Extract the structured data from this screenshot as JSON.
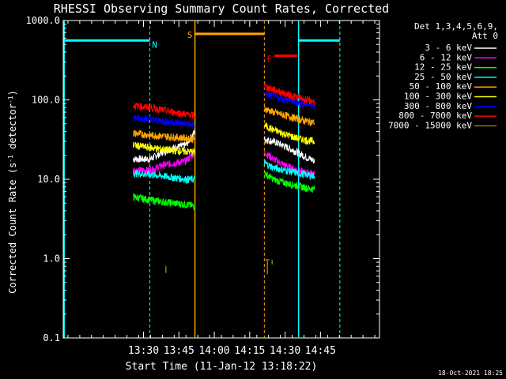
{
  "chart_data": {
    "type": "line",
    "title": "RHESSI Observing Summary Count Rates, Corrected",
    "xlabel": "Start Time (11-Jan-12 13:18:22)",
    "ylabel": "Corrected Count Rate (s⁻¹ detector⁻¹)",
    "ylabel_parts": [
      "Corrected Count Rate (s",
      "-1",
      " detector",
      "-1",
      ")"
    ],
    "y_scale": "log",
    "ylim": [
      0.1,
      1000
    ],
    "xlim_minutes": [
      -22,
      112
    ],
    "x_ticks": [
      {
        "minute": 12,
        "label": "13:30"
      },
      {
        "minute": 27,
        "label": "13:45"
      },
      {
        "minute": 42,
        "label": "14:00"
      },
      {
        "minute": 57,
        "label": "14:15"
      },
      {
        "minute": 72,
        "label": "14:30"
      },
      {
        "minute": 87,
        "label": "14:45"
      }
    ],
    "y_ticks": [
      {
        "value": 0.1,
        "label": "0.1"
      },
      {
        "value": 1,
        "label": "1.0"
      },
      {
        "value": 10,
        "label": "10.0"
      },
      {
        "value": 100,
        "label": "100.0"
      },
      {
        "value": 1000,
        "label": "1000.0"
      }
    ],
    "legend_header": [
      "Det 1,3,4,5,6,9,",
      "Att 0"
    ],
    "legend_position": "right",
    "segments": [
      [
        7.6,
        33.8
      ],
      [
        63.2,
        84.5
      ]
    ],
    "series": [
      {
        "name": "3 - 6 keV",
        "color": "#ffffff",
        "values": [
          [
            7.6,
            18
          ],
          [
            15,
            18
          ],
          [
            20,
            22
          ],
          [
            25,
            25
          ],
          [
            30,
            27
          ],
          [
            33.8,
            40
          ],
          [
            63.2,
            32
          ],
          [
            67,
            30
          ],
          [
            72,
            26
          ],
          [
            77,
            22
          ],
          [
            81,
            19
          ],
          [
            84.5,
            17
          ]
        ]
      },
      {
        "name": "6 - 12 keV",
        "color": "#ff00ff",
        "values": [
          [
            7.6,
            13
          ],
          [
            15,
            13
          ],
          [
            20,
            15
          ],
          [
            25,
            16
          ],
          [
            30,
            17
          ],
          [
            33.8,
            22
          ],
          [
            63.2,
            22
          ],
          [
            67,
            18
          ],
          [
            72,
            15
          ],
          [
            77,
            13
          ],
          [
            81,
            12
          ],
          [
            84.5,
            12
          ]
        ]
      },
      {
        "name": "12 - 25 keV",
        "color": "#00ff00",
        "values": [
          [
            7.6,
            6
          ],
          [
            15,
            5.5
          ],
          [
            20,
            5.2
          ],
          [
            25,
            5
          ],
          [
            30,
            4.8
          ],
          [
            33.8,
            4.6
          ],
          [
            63.2,
            12
          ],
          [
            67,
            10
          ],
          [
            72,
            9
          ],
          [
            77,
            8.3
          ],
          [
            81,
            7.8
          ],
          [
            84.5,
            7.5
          ]
        ]
      },
      {
        "name": "25 - 50 keV",
        "color": "#00ffff",
        "values": [
          [
            7.6,
            12
          ],
          [
            15,
            11.5
          ],
          [
            20,
            11
          ],
          [
            25,
            10.5
          ],
          [
            30,
            10
          ],
          [
            33.8,
            10
          ],
          [
            63.2,
            16
          ],
          [
            67,
            14
          ],
          [
            72,
            13
          ],
          [
            77,
            12
          ],
          [
            81,
            11.5
          ],
          [
            84.5,
            11
          ]
        ]
      },
      {
        "name": "50 - 100 keV",
        "color": "#ffa500",
        "values": [
          [
            7.6,
            38
          ],
          [
            15,
            36
          ],
          [
            20,
            35
          ],
          [
            25,
            34
          ],
          [
            30,
            33
          ],
          [
            33.8,
            32
          ],
          [
            63.2,
            78
          ],
          [
            67,
            70
          ],
          [
            72,
            64
          ],
          [
            77,
            58
          ],
          [
            81,
            54
          ],
          [
            84.5,
            52
          ]
        ]
      },
      {
        "name": "100 - 300 keV",
        "color": "#ffff00",
        "values": [
          [
            7.6,
            27
          ],
          [
            15,
            25
          ],
          [
            20,
            24
          ],
          [
            25,
            23
          ],
          [
            30,
            22.5
          ],
          [
            33.8,
            22
          ],
          [
            63.2,
            48
          ],
          [
            67,
            42
          ],
          [
            72,
            37
          ],
          [
            77,
            33
          ],
          [
            81,
            31
          ],
          [
            84.5,
            30
          ]
        ]
      },
      {
        "name": "300 - 800 keV",
        "color": "#0000ff",
        "values": [
          [
            7.6,
            60
          ],
          [
            15,
            57
          ],
          [
            20,
            54
          ],
          [
            25,
            52
          ],
          [
            30,
            50
          ],
          [
            33.8,
            48
          ],
          [
            63.2,
            120
          ],
          [
            67,
            110
          ],
          [
            72,
            100
          ],
          [
            77,
            93
          ],
          [
            81,
            88
          ],
          [
            84.5,
            85
          ]
        ]
      },
      {
        "name": "800 - 7000 keV",
        "color": "#ff0000",
        "values": [
          [
            7.6,
            85
          ],
          [
            15,
            80
          ],
          [
            20,
            75
          ],
          [
            25,
            70
          ],
          [
            30,
            66
          ],
          [
            33.8,
            63
          ],
          [
            63.2,
            150
          ],
          [
            67,
            135
          ],
          [
            72,
            120
          ],
          [
            77,
            108
          ],
          [
            81,
            100
          ],
          [
            84.5,
            95
          ]
        ]
      },
      {
        "name": "7000 - 15000 keV",
        "color": "#808000",
        "values": [
          [
            21.5,
            0.8
          ],
          [
            21.5,
            0.66
          ],
          [
            63.6,
            0.97
          ],
          [
            64.5,
            0.8
          ],
          [
            65.3,
            0.97
          ],
          [
            66.5,
            0.97
          ]
        ]
      }
    ],
    "vertical_lines": [
      {
        "minute": -21.6,
        "color": "#00ffff",
        "style": "solid"
      },
      {
        "minute": 14.7,
        "color": "#00ffff",
        "style": "dashed"
      },
      {
        "minute": 33.8,
        "color": "#ffa500",
        "style": "solid"
      },
      {
        "minute": 63.2,
        "color": "#ffa500",
        "style": "dashed"
      },
      {
        "minute": 77.7,
        "color": "#00ffff",
        "style": "solid"
      },
      {
        "minute": 95.2,
        "color": "#00ffff",
        "style": "dashed"
      }
    ],
    "state_bars": [
      {
        "label": "N",
        "color": "#00ffff",
        "y": 560,
        "x0": -21.6,
        "x1": 14.7,
        "label_minute": 16.7,
        "label_y": 500
      },
      {
        "label": "",
        "color": "#00ffff",
        "y": 560,
        "x0": 77.7,
        "x1": 95.2,
        "label_minute": null,
        "label_y": null
      },
      {
        "label": "S",
        "color": "#ffa500",
        "y": 680,
        "x0": 33.8,
        "x1": 63.2,
        "label_minute": 31.6,
        "label_y": 660
      },
      {
        "label": "F",
        "color": "#ff0000",
        "y": 360,
        "x0": 67.5,
        "x1": 77.2,
        "label_minute": 65.3,
        "label_y": 330
      }
    ],
    "timestamp": "18-Oct-2021 18:25"
  }
}
